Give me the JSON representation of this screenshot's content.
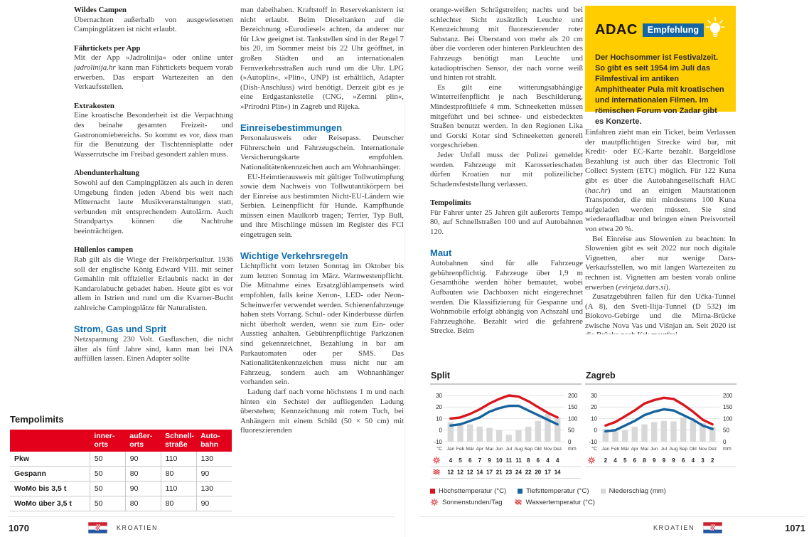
{
  "colors": {
    "red": "#d9161d",
    "blue": "#16639e",
    "bar_gray": "#d8d8d8",
    "heading_blue": "#0e6cb0",
    "table_red": "#e2001a",
    "adac_yellow": "#ffcd00",
    "badge_blue": "#1565a3"
  },
  "left_page": {
    "column1": [
      {
        "t": "h3",
        "x": "Wildes Campen"
      },
      {
        "t": "p",
        "x": "Übernachten außerhalb von ausgewiesenen Campingplätzen ist nicht erlaubt."
      },
      {
        "t": "h3",
        "x": "Fährtickets per App"
      },
      {
        "t": "p",
        "r": [
          "Mit der App »Jadrolinija« oder online unter ",
          {
            "i": "jadrolinija.hr"
          },
          " kann man Fährtickets bequem vorab erwerben. Das erspart Wartezeiten an den Verkaufsstellen."
        ]
      },
      {
        "t": "h3",
        "x": "Extrakosten"
      },
      {
        "t": "p",
        "x": "Eine kroatische Besonderheit ist die Verpachtung des beinahe gesamten Freizeit- und Gastronomiebereichs. So kommt es vor, dass man für die Benutzung der Tischtennisplatte oder Wasserrutsche im Freibad gesondert zahlen muss."
      },
      {
        "t": "h3",
        "x": "Abendunterhaltung"
      },
      {
        "t": "p",
        "x": "Sowohl auf den Campingplätzen als auch in deren Umgebung finden jeden Abend bis weit nach Mitternacht laute Musikveranstaltungen statt, verbunden mit entsprechendem Autolärm. Auch Strandpartys können die Nachtruhe beeinträchtigen."
      },
      {
        "t": "h3",
        "x": "Hüllenlos campen"
      },
      {
        "t": "p",
        "x": "Rab gilt als die Wiege der Freikörperkultur. 1936 soll der englische König Edward VIII. mit seiner Gemahlin mit offizieller Erlaubnis nackt in der Kandarolabucht gebadet haben. Heute gibt es vor allem in Istrien und rund um die Kvarner-Bucht zahlreiche Campingplätze für Naturalisten."
      },
      {
        "t": "h2",
        "x": "Strom, Gas und Sprit"
      },
      {
        "t": "p",
        "x": "Netzspannung 230 Volt. Gasflaschen, die nicht älter als fünf Jahre sind, kann man bei INA auffüllen lassen. Einen Adapter sollte"
      }
    ],
    "column2": [
      {
        "t": "p",
        "x": "man dabeihaben. Kraftstoff in Reservekanistern ist nicht erlaubt. Beim Dieseltanken auf die Bezeichnung »Eurodiesel« achten, da anderer nur für Lkw geeignet ist. Tankstellen sind in der Regel 7 bis 20, im Sommer meist bis 22 Uhr geöffnet, in großen Städten und an internationalen Fernverkehrsstraßen auch rund um die Uhr. LPG (»Autoplin«, »Plin«, UNP) ist erhältlich, Adapter (Dish-Anschluss) wird benötigt. Derzeit gibt es je eine Erdgastankstelle (CNG, »Zemni plin«, »Prirodni Plin«) in Zagreb und Rijeka."
      },
      {
        "t": "h2",
        "x": "Einreisebestimmungen"
      },
      {
        "t": "p",
        "x": "Personalausweis oder Reisepass. Deutscher Führerschein und Fahrzeugschein. Internationale Versicherungskarte empfohlen. Nationalitätenkennzeichen auch am Wohnanhänger."
      },
      {
        "t": "p",
        "ind": true,
        "x": "EU-Heimtierausweis mit gültiger Tollwutimpfung sowie dem Nachweis von Tollwutantikörpern bei der Einreise aus bestimmten Nicht-EU-Ländern wie Serbien. Leinenpflicht für Hunde. Kampfhunde müssen einen Maulkorb tragen; Terrier, Typ Bull, und ihre Mischlinge müssen im Register des FCI eingetragen sein."
      },
      {
        "t": "h2",
        "x": "Wichtige Verkehrsregeln"
      },
      {
        "t": "p",
        "x": "Lichtpflicht vom letzten Sonntag im Oktober bis zum letzten Sonntag im März. Warnwestenpflicht. Die Mitnahme eines Ersatzglühlampensets wird empfohlen, falls keine Xenon-, LED- oder Neon-Scheinwerfer verwendet werden. Schienenfahrzeuge haben stets Vorrang. Schul- oder Kinderbusse dürfen nicht überholt werden, wenn sie zum Ein- oder Ausstieg anhalten. Gebührenpflichtige Parkzonen sind gekennzeichnet, Bezahlung in bar am Parkautomaten oder per SMS. Das Nationalitätenkennzeichen muss nicht nur am Fahrzeug, sondern auch am Wohnanhänger vorhanden sein."
      },
      {
        "t": "p",
        "ind": true,
        "x": "Ladung darf nach vorne höchstens 1 m und nach hinten ein Sechstel der aufliegenden Ladung überstehen; Kennzeichnung mit rotem Tuch, bei Anhängern mit einem Schild (50 × 50 cm) mit fluoreszierenden"
      }
    ],
    "table": {
      "title": "Tempolimits",
      "headers": [
        "",
        "inner-\norts",
        "außer-\norts",
        "Schnell-\nstraße",
        "Auto-\nbahn"
      ],
      "rows": [
        [
          "Pkw",
          "50",
          "90",
          "110",
          "130"
        ],
        [
          "Gespann",
          "50",
          "80",
          "80",
          "90"
        ],
        [
          "WoMo bis 3,5 t",
          "50",
          "90",
          "110",
          "130"
        ],
        [
          "WoMo über 3,5 t",
          "50",
          "80",
          "80",
          "90"
        ]
      ]
    },
    "footer": {
      "page_number": "1070",
      "region": "KROATIEN"
    }
  },
  "right_page": {
    "column1": [
      {
        "t": "p",
        "x": "orange-weißen Schrägstreifen; nachts und bei schlechter Sicht zusätzlich Leuchte und Kennzeichnung mit fluoreszierender roter Substanz. Bei Überstand von mehr als 20 cm über die vorderen oder hinteren Parkleuchten des Fahrzeugs benötigt man Leuchte und katadioptrischen Sensor, der nach vorne weiß und hinten rot strahlt."
      },
      {
        "t": "p",
        "ind": true,
        "x": "Es gilt eine witterungsabhängige Winterreifenpflicht je nach Beschilderung, Mindestprofiltiefe 4 mm. Schneeketten müssen mitgeführt und bei schnee- und eisbedeckten Straßen benutzt werden. In den Regionen Lika und Gorski Kotar sind Schneeketten generell vorgeschrieben."
      },
      {
        "t": "p",
        "ind": true,
        "x": "Jeder Unfall muss der Polizei gemeldet werden. Fahrzeuge mit Karosserieschaden dürfen Kroatien nur mit polizeilicher Schadensfeststellung verlassen."
      },
      {
        "t": "h3",
        "x": "Tempolimits"
      },
      {
        "t": "p",
        "x": "Für Fahrer unter 25 Jahren gilt außerorts Tempo 80, auf Schnellstraßen 100 und auf Autobahnen 120."
      },
      {
        "t": "h2",
        "x": "Maut"
      },
      {
        "t": "p",
        "x": "Autobahnen sind für alle Fahrzeuge gebührenpflichtig. Fahrzeuge über 1,9 m Gesamthöhe werden höher bemautet, wobei Aufbauten wie Dachboxen nicht eingerechnet werden. Die Klassifizierung für Gespanne und Wohnmobile erfolgt abhängig von Achszahl und Fahrzeughöhe. Bezahlt wird die gefahrene Strecke. Beim"
      }
    ],
    "adac_box": {
      "brand": "ADAC",
      "badge": "Empfehlung",
      "text": "Der Hochsommer ist Festivalzeit. So gibt es seit 1954 im Juli das Filmfestival im antiken Amphitheater Pula mit kroatischen und internationalen Filmen. Im römischen Forum von Zadar gibt es Konzerte."
    },
    "column2": [
      {
        "t": "p",
        "r": [
          "Einfahren zieht man ein Ticket, beim Verlassen der mautpflichtigen Strecke wird bar, mit Kredit- oder EC-Karte bezahlt. Bargeldlose Bezahlung ist auch über das Electronic Toll Collect System (ETC) möglich. Für 122 Kuna gibt es über die Autobahngesellschaft HAC (",
          {
            "i": "hac.hr"
          },
          ") und an einigen Mautstationen Transponder, die mit mindestens 100 Kuna aufgeladen werden müssen. Sie sind wiederaufladbar und bringen einen Preisvorteil von etwa 20 %."
        ]
      },
      {
        "t": "p",
        "ind": true,
        "r": [
          "Bei Einreise aus Slowenien zu beachten: In Slowenien gibt es seit 2022 nur noch digitale Vignetten, aber nur wenige Dars-Verkaufsstellen, wo mit langen Wartezeiten zu rechnen ist. Vignetten am besten vorab online erwerben (",
          {
            "i": "evinjeta.dars.si"
          },
          ")."
        ]
      },
      {
        "t": "p",
        "ind": true,
        "x": "Zusatzgebühren fallen für den Učka-Tunnel (A 8), den Sveti-Ilija-Tunnel (D 532) im Biokovo-Gebirge und die Mirna-Brücke zwische Nova Vas und Višnjan an. Seit 2020 ist die Brücke nach Krk mautfrei."
      }
    ],
    "footer": {
      "page_number": "1071",
      "region": "KROATIEN"
    }
  },
  "chart_data": [
    {
      "type": "line+bar",
      "title": "Split",
      "months": [
        "Jan",
        "Feb",
        "Mär",
        "Apr",
        "Mai",
        "Jun",
        "Jul",
        "Aug",
        "Sep",
        "Okt",
        "Nov",
        "Dez"
      ],
      "unit_left": "°C",
      "unit_right": "mm",
      "y_left_ticks": [
        30,
        20,
        10,
        0,
        -10
      ],
      "y_right_ticks": [
        200,
        150,
        100,
        50,
        0
      ],
      "ylim_left": [
        -10,
        30
      ],
      "ylim_right": [
        0,
        200
      ],
      "series": [
        {
          "name": "Höchsttemperatur (°C)",
          "type": "line",
          "color_key": "red",
          "values": [
            10,
            11,
            14,
            18,
            23,
            27,
            30,
            29,
            25,
            20,
            15,
            11
          ]
        },
        {
          "name": "Tiefsttemperatur (°C)",
          "type": "line",
          "color_key": "blue",
          "values": [
            4,
            5,
            8,
            11,
            16,
            19,
            21,
            21,
            17,
            13,
            9,
            5
          ]
        },
        {
          "name": "Niederschlag (mm)",
          "type": "bar",
          "color_key": "bar_gray",
          "values": [
            85,
            70,
            75,
            65,
            60,
            50,
            30,
            50,
            65,
            90,
            120,
            105
          ]
        }
      ],
      "sun_row": {
        "label": "Sonnenstunden/Tag",
        "values": [
          4,
          5,
          6,
          7,
          9,
          10,
          11,
          11,
          8,
          6,
          4,
          4
        ]
      },
      "water_row": {
        "label": "Wassertemperatur (°C)",
        "values": [
          12,
          12,
          12,
          14,
          17,
          21,
          23,
          24,
          22,
          20,
          17,
          14
        ]
      }
    },
    {
      "type": "line+bar",
      "title": "Zagreb",
      "months": [
        "Jan",
        "Feb",
        "Mär",
        "Apr",
        "Mai",
        "Jun",
        "Jul",
        "Aug",
        "Sep",
        "Okt",
        "Nov",
        "Dez"
      ],
      "unit_left": "°C",
      "unit_right": "mm",
      "y_left_ticks": [
        30,
        20,
        10,
        0,
        -10
      ],
      "y_right_ticks": [
        200,
        150,
        100,
        50,
        0
      ],
      "ylim_left": [
        -10,
        30
      ],
      "ylim_right": [
        0,
        200
      ],
      "series": [
        {
          "name": "Höchsttemperatur (°C)",
          "type": "line",
          "color_key": "red",
          "values": [
            4,
            7,
            12,
            17,
            23,
            26,
            28,
            27,
            22,
            16,
            9,
            5
          ]
        },
        {
          "name": "Tiefsttemperatur (°C)",
          "type": "line",
          "color_key": "blue",
          "values": [
            -1,
            0,
            4,
            8,
            13,
            16,
            18,
            17,
            13,
            9,
            4,
            1
          ]
        },
        {
          "name": "Niederschlag (mm)",
          "type": "bar",
          "color_key": "bar_gray",
          "values": [
            55,
            45,
            50,
            65,
            75,
            85,
            90,
            88,
            105,
            90,
            80,
            65
          ]
        }
      ],
      "sun_row": {
        "label": "Sonnenstunden/Tag",
        "values": [
          2,
          4,
          5,
          6,
          8,
          9,
          9,
          9,
          6,
          4,
          3,
          2
        ]
      },
      "water_row": null
    }
  ],
  "legend": {
    "row1": [
      {
        "icon": "square-red",
        "label": "Höchsttemperatur (°C)"
      },
      {
        "icon": "square-blue",
        "label": "Tiefsttemperatur (°C)"
      },
      {
        "icon": "square-gray",
        "label": "Niederschlag (mm)"
      }
    ],
    "row2": [
      {
        "icon": "sun",
        "label": "Sonnenstunden/Tag"
      },
      {
        "icon": "waves",
        "label": "Wassertemperatur (°C)"
      }
    ]
  }
}
